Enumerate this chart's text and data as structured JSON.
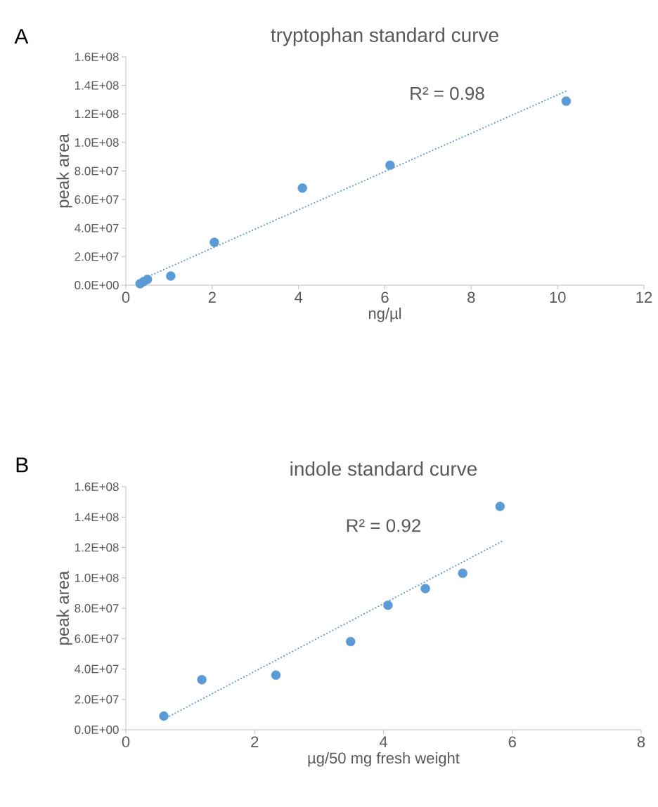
{
  "chart_data": [
    {
      "type": "scatter",
      "title": "tryptophan standard curve",
      "xlabel": "ng/µl",
      "ylabel": "peak area",
      "annotations": [
        "A",
        "R² = 0.98"
      ],
      "marker": "circle",
      "xlim": [
        0,
        12
      ],
      "xticks": [
        0,
        2,
        4,
        6,
        8,
        10,
        12
      ],
      "ylim": [
        0,
        160000000
      ],
      "yticks": [
        {
          "value": 0,
          "label": "0.0E+00"
        },
        {
          "value": 20000000,
          "label": "2.0E+07"
        },
        {
          "value": 40000000,
          "label": "4.0E+07"
        },
        {
          "value": 60000000,
          "label": "6.0E+07"
        },
        {
          "value": 80000000,
          "label": "8.0E+07"
        },
        {
          "value": 100000000,
          "label": "1.0E+08"
        },
        {
          "value": 120000000,
          "label": "1.2E+08"
        },
        {
          "value": 140000000,
          "label": "1.4E+08"
        },
        {
          "value": 160000000,
          "label": "1.6E+08"
        }
      ],
      "series": [
        {
          "color": "#5b9bd5",
          "x": [
            0.33,
            0.41,
            0.5,
            1.04,
            2.05,
            4.09,
            6.12,
            10.2
          ],
          "values": [
            1000000,
            2500000,
            4000000,
            6400000,
            30000000,
            68000000,
            84000000,
            129000000
          ]
        },
        {
          "type": "line",
          "color": "#5b9bd5",
          "line_style": "dotted",
          "marker": "none",
          "x": [
            0.33,
            10.2
          ],
          "values": [
            3500000,
            136000000
          ]
        }
      ]
    },
    {
      "type": "scatter",
      "title": "indole standard curve",
      "xlabel": "µg/50 mg fresh weight",
      "ylabel": "peak area",
      "annotations": [
        "B",
        "R² = 0.92"
      ],
      "marker": "circle",
      "xlim": [
        0,
        8
      ],
      "xticks": [
        0,
        2,
        4,
        6,
        8
      ],
      "ylim": [
        0,
        160000000
      ],
      "yticks": [
        {
          "value": 0,
          "label": "0.0E+00"
        },
        {
          "value": 20000000,
          "label": "2.0E+07"
        },
        {
          "value": 40000000,
          "label": "4.0E+07"
        },
        {
          "value": 60000000,
          "label": "6.0E+07"
        },
        {
          "value": 80000000,
          "label": "8.0E+07"
        },
        {
          "value": 100000000,
          "label": "1.0E+08"
        },
        {
          "value": 120000000,
          "label": "1.2E+08"
        },
        {
          "value": 140000000,
          "label": "1.4E+08"
        },
        {
          "value": 160000000,
          "label": "1.6E+08"
        }
      ],
      "series": [
        {
          "color": "#5b9bd5",
          "x": [
            0.59,
            1.18,
            2.33,
            3.49,
            4.07,
            4.65,
            5.23,
            5.81
          ],
          "values": [
            9000000,
            33000000,
            36000000,
            58000000,
            82000000,
            93000000,
            103000000,
            147000000
          ]
        },
        {
          "type": "line",
          "color": "#5b9bd5",
          "line_style": "dotted",
          "marker": "none",
          "x": [
            0.59,
            5.84
          ],
          "values": [
            7000000,
            124000000
          ]
        }
      ]
    }
  ]
}
